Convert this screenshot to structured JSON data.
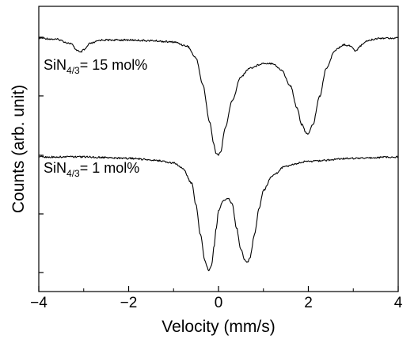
{
  "chart_data": {
    "type": "line",
    "xlabel": "Velocity (mm/s)",
    "ylabel": "Counts (arb. unit)",
    "xlim": [
      -4,
      4
    ],
    "xticks": [
      {
        "value": -4,
        "label": "−4"
      },
      {
        "value": -2,
        "label": "−2"
      },
      {
        "value": 0,
        "label": "0"
      },
      {
        "value": 2,
        "label": "2"
      },
      {
        "value": 4,
        "label": "4"
      }
    ],
    "y_tick_labels_shown": false,
    "grid": false,
    "series": [
      {
        "label_main": "SiN",
        "label_sub": "4/3",
        "label_rest": "= 15 mol%",
        "x": [
          -4.0,
          -3.6,
          -3.3,
          -3.15,
          -3.08,
          -3.0,
          -2.85,
          -2.6,
          -2.0,
          -1.5,
          -1.0,
          -0.7,
          -0.5,
          -0.35,
          -0.2,
          -0.1,
          -0.05,
          0.0,
          0.05,
          0.15,
          0.3,
          0.5,
          0.7,
          1.0,
          1.2,
          1.4,
          1.6,
          1.75,
          1.85,
          1.95,
          2.0,
          2.1,
          2.25,
          2.4,
          2.6,
          2.8,
          2.95,
          3.05,
          3.15,
          3.3,
          3.6,
          4.0
        ],
        "y": [
          0.0,
          -0.02,
          -0.08,
          -0.18,
          -0.22,
          -0.18,
          -0.08,
          -0.03,
          -0.03,
          -0.04,
          -0.06,
          -0.12,
          -0.3,
          -0.7,
          -1.25,
          -1.6,
          -1.74,
          -1.76,
          -1.7,
          -1.35,
          -0.95,
          -0.58,
          -0.45,
          -0.38,
          -0.38,
          -0.48,
          -0.72,
          -1.05,
          -1.3,
          -1.42,
          -1.44,
          -1.3,
          -0.88,
          -0.45,
          -0.18,
          -0.1,
          -0.12,
          -0.2,
          -0.12,
          -0.04,
          0.0,
          0.0
        ]
      },
      {
        "label_main": "SiN",
        "label_sub": "4/3",
        "label_rest": "= 1 mol%",
        "x": [
          -4.0,
          -3.0,
          -2.0,
          -1.5,
          -1.0,
          -0.8,
          -0.6,
          -0.5,
          -0.4,
          -0.3,
          -0.22,
          -0.15,
          -0.1,
          -0.05,
          0.0,
          0.1,
          0.2,
          0.3,
          0.4,
          0.5,
          0.6,
          0.65,
          0.7,
          0.8,
          0.9,
          1.0,
          1.2,
          1.5,
          2.0,
          3.0,
          4.0
        ],
        "y": [
          0.0,
          0.0,
          -0.02,
          -0.04,
          -0.08,
          -0.15,
          -0.35,
          -0.65,
          -1.05,
          -1.4,
          -1.52,
          -1.45,
          -1.2,
          -0.95,
          -0.72,
          -0.6,
          -0.55,
          -0.62,
          -0.95,
          -1.25,
          -1.4,
          -1.42,
          -1.35,
          -1.05,
          -0.7,
          -0.45,
          -0.25,
          -0.12,
          -0.06,
          -0.02,
          0.0
        ]
      }
    ]
  }
}
